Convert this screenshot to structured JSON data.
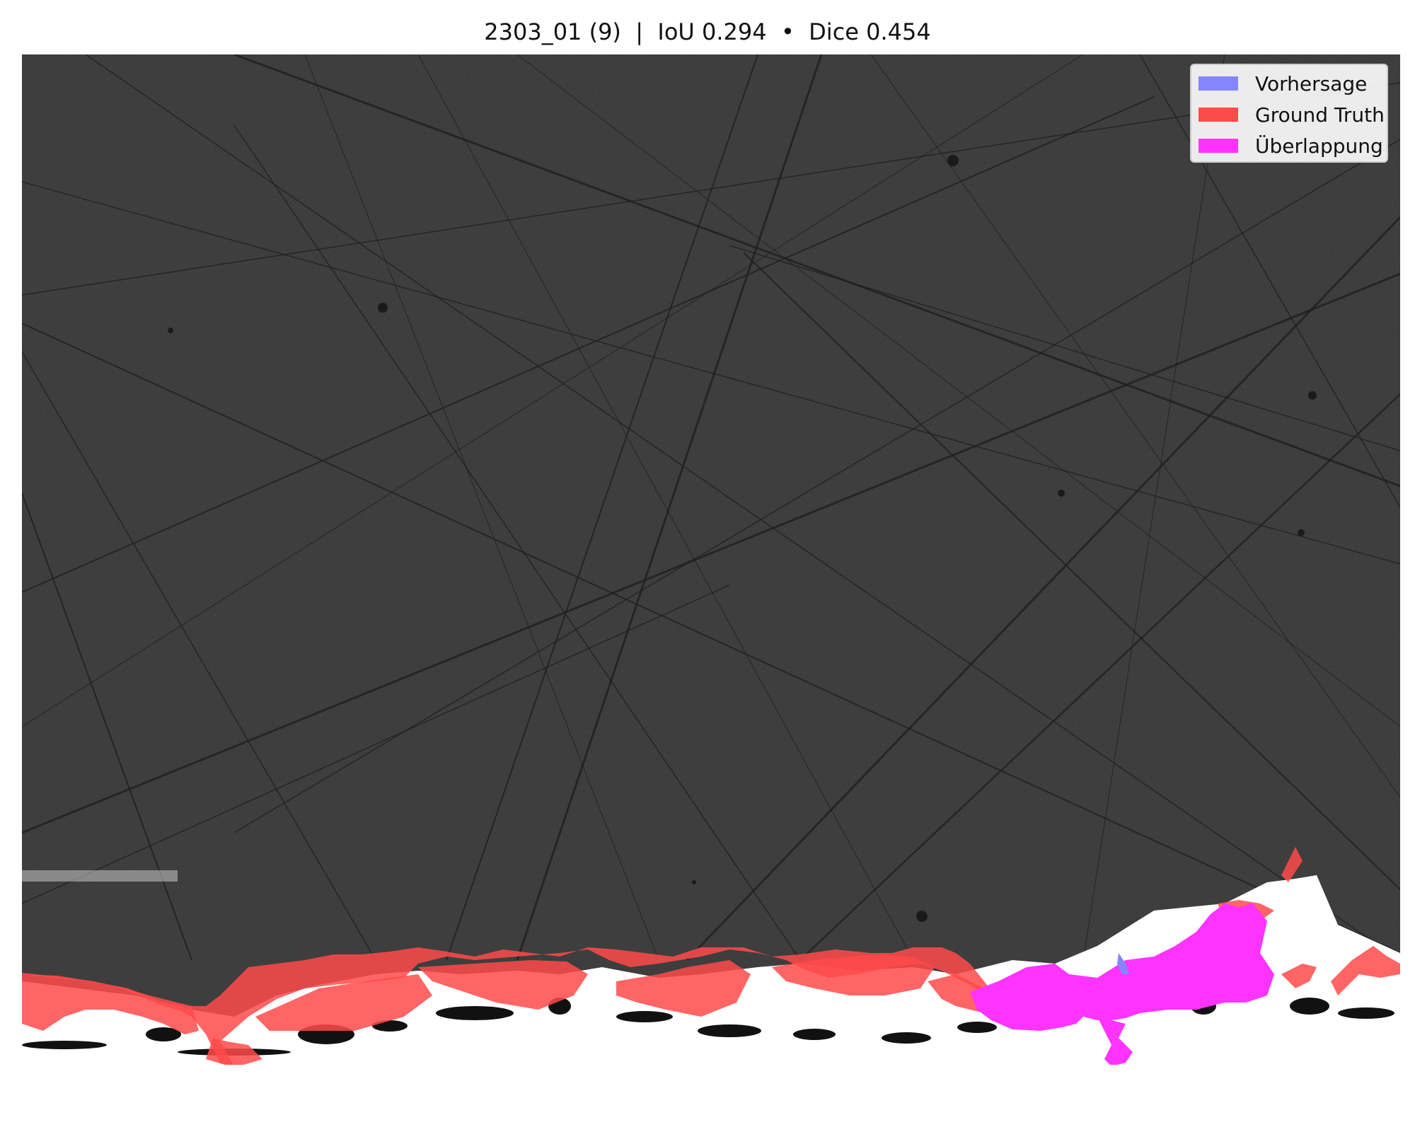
{
  "title": "2303_01 (9)  |  IoU 0.294  •  Dice 0.454",
  "legend": {
    "items": [
      {
        "label": "Vorhersage",
        "color": "#8585ff"
      },
      {
        "label": "Ground Truth",
        "color": "#ff4a4a"
      },
      {
        "label": "Überlappung",
        "color": "#ff33ff"
      }
    ]
  },
  "colors": {
    "background": "#4a4a4a",
    "prediction": "#8585ff",
    "ground_truth": "#ff4a4a",
    "overlap": "#ff33ff",
    "substrate": "#ffffff"
  }
}
